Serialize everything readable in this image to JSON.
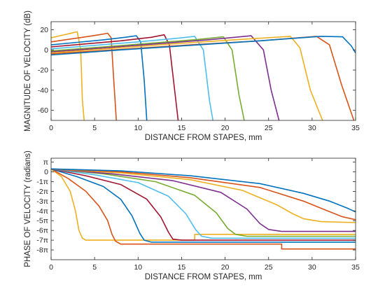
{
  "chart_data": [
    {
      "type": "line",
      "title": "",
      "xlabel": "DISTANCE FROM STAPES, mm",
      "ylabel": "MAGNITUDE OF VELOCITY (dB)",
      "xlim": [
        0,
        35
      ],
      "ylim": [
        -70,
        28
      ],
      "xticks": [
        "0",
        "5",
        "10",
        "15",
        "20",
        "25",
        "30",
        "35"
      ],
      "yticks": [
        {
          "value": 20,
          "label": "20"
        },
        {
          "value": 0,
          "label": "0"
        },
        {
          "value": -20,
          "label": "-20"
        },
        {
          "value": -40,
          "label": "-40"
        },
        {
          "value": -60,
          "label": "-60"
        }
      ],
      "grid": false,
      "series": [
        {
          "color": "#EDB120",
          "x": [
            0,
            1,
            2,
            3.0,
            3.4,
            3.6,
            3.8
          ],
          "y": [
            12,
            14,
            16,
            18,
            0,
            -50,
            -70
          ]
        },
        {
          "color": "#D95319",
          "x": [
            0,
            2,
            4,
            5.5,
            6.5,
            6.9,
            7.2,
            7.5
          ],
          "y": [
            8,
            10.5,
            13,
            15,
            16.5,
            12,
            -30,
            -70
          ]
        },
        {
          "color": "#0072BD",
          "x": [
            0,
            3,
            6,
            8.5,
            9.8,
            10.3,
            10.7,
            11.0
          ],
          "y": [
            5,
            7.5,
            10,
            12.5,
            14,
            8,
            -30,
            -70
          ]
        },
        {
          "color": "#A2142F",
          "x": [
            0,
            4,
            8,
            11.5,
            13.0,
            13.6,
            14.2,
            14.6
          ],
          "y": [
            3,
            6,
            9,
            12.5,
            15,
            5,
            -40,
            -70
          ]
        },
        {
          "color": "#4DBEEE",
          "x": [
            0,
            5,
            10,
            14.5,
            16.5,
            17.5,
            18.2,
            18.6
          ],
          "y": [
            1,
            4.5,
            8,
            11.5,
            13.5,
            0,
            -50,
            -70
          ]
        },
        {
          "color": "#77AC30",
          "x": [
            0,
            6,
            12,
            17,
            19.8,
            20.8,
            21.6,
            22.2
          ],
          "y": [
            -1,
            3,
            7,
            10.5,
            13,
            0,
            -45,
            -70
          ]
        },
        {
          "color": "#7E2F8E",
          "x": [
            0,
            6,
            12,
            18,
            23.0,
            24.4,
            25.3,
            26.2
          ],
          "y": [
            -2,
            2,
            6,
            10,
            14,
            0,
            -40,
            -70
          ]
        },
        {
          "color": "#EDB120",
          "x": [
            0,
            7,
            14,
            21,
            27.5,
            28.6,
            29.8,
            31.2
          ],
          "y": [
            -3,
            1.5,
            6,
            10,
            13.5,
            2,
            -40,
            -70
          ]
        },
        {
          "color": "#D95319",
          "x": [
            0,
            8,
            16,
            24,
            30.5,
            32.0,
            33.4,
            34.8
          ],
          "y": [
            -4,
            0.5,
            5,
            9,
            13.5,
            5,
            -35,
            -70
          ]
        },
        {
          "color": "#0072BD",
          "x": [
            0,
            8,
            16,
            24,
            31,
            33.5,
            34.5,
            35
          ],
          "y": [
            -5,
            0,
            4.5,
            9,
            13.5,
            13,
            4,
            -3
          ]
        }
      ]
    },
    {
      "type": "line",
      "title": "",
      "xlabel": "DISTANCE FROM STAPES, mm",
      "ylabel": "PHASE OF VELOCITY (radians)",
      "xlim": [
        0,
        35
      ],
      "ylim": [
        -9,
        1.4
      ],
      "xticks": [
        "0",
        "5",
        "10",
        "15",
        "20",
        "25",
        "30",
        "35"
      ],
      "yticks": [
        {
          "value": 1,
          "label": "π"
        },
        {
          "value": 0,
          "label": "0"
        },
        {
          "value": -1,
          "label": "-1π"
        },
        {
          "value": -2,
          "label": "-2π"
        },
        {
          "value": -3,
          "label": "-3π"
        },
        {
          "value": -4,
          "label": "-4π"
        },
        {
          "value": -5,
          "label": "-5π"
        },
        {
          "value": -6,
          "label": "-6π"
        },
        {
          "value": -7,
          "label": "-7π"
        },
        {
          "value": -8,
          "label": "-8π"
        }
      ],
      "y_unit": "multiples of π",
      "grid": false,
      "series": [
        {
          "color": "#EDB120",
          "x": [
            0,
            1.2,
            2.2,
            2.8,
            3.2,
            3.6,
            4,
            16.5,
            16.5,
            35
          ],
          "y": [
            0.3,
            -0.5,
            -2,
            -4,
            -6,
            -6.8,
            -7,
            -7,
            -6.4,
            -6.4
          ]
        },
        {
          "color": "#D95319",
          "x": [
            0,
            2,
            4,
            5.5,
            6.5,
            7.0,
            7.4,
            8,
            26.5,
            26.5,
            35
          ],
          "y": [
            0.3,
            -0.7,
            -2,
            -3.5,
            -5,
            -6.4,
            -7.1,
            -7.4,
            -7.4,
            -7.9,
            -7.9
          ]
        },
        {
          "color": "#0072BD",
          "x": [
            0,
            3,
            6,
            8,
            9.3,
            10.2,
            10.7,
            11.5,
            35
          ],
          "y": [
            0.3,
            -0.5,
            -1.5,
            -2.8,
            -4.5,
            -6.3,
            -7.0,
            -7.2,
            -7.2
          ]
        },
        {
          "color": "#A2142F",
          "x": [
            0,
            4,
            8,
            11,
            12.6,
            13.5,
            14.0,
            15,
            35
          ],
          "y": [
            0.3,
            -0.4,
            -1.3,
            -2.8,
            -4.6,
            -6.2,
            -6.9,
            -7.0,
            -7.0
          ]
        },
        {
          "color": "#4DBEEE",
          "x": [
            0,
            5,
            10,
            13.5,
            15.5,
            16.6,
            17.3,
            18.5,
            35
          ],
          "y": [
            0.3,
            -0.3,
            -1.1,
            -2.5,
            -4.3,
            -5.9,
            -6.6,
            -6.8,
            -6.8
          ]
        },
        {
          "color": "#77AC30",
          "x": [
            0,
            6,
            12,
            16.5,
            19.0,
            20.3,
            21.2,
            22.5,
            35
          ],
          "y": [
            0.3,
            -0.2,
            -1.0,
            -2.4,
            -4.2,
            -5.8,
            -6.4,
            -6.6,
            -6.6
          ]
        },
        {
          "color": "#7E2F8E",
          "x": [
            0,
            7,
            14,
            19.5,
            22.5,
            24.0,
            25.0,
            26.5,
            35
          ],
          "y": [
            0.3,
            -0.2,
            -0.9,
            -2.1,
            -3.8,
            -5.3,
            -5.9,
            -6.1,
            -6.1
          ]
        },
        {
          "color": "#EDB120",
          "x": [
            0,
            8,
            16,
            22,
            26,
            27.8,
            29.0,
            31,
            35
          ],
          "y": [
            0.3,
            -0.1,
            -0.8,
            -1.9,
            -3.4,
            -4.3,
            -4.8,
            -5.1,
            -5.2
          ]
        },
        {
          "color": "#D95319",
          "x": [
            0,
            8,
            16,
            24,
            29,
            31.5,
            33.5,
            35
          ],
          "y": [
            0.3,
            0,
            -0.6,
            -1.6,
            -3.0,
            -3.9,
            -4.6,
            -4.9
          ]
        },
        {
          "color": "#0072BD",
          "x": [
            0,
            8,
            16,
            24,
            29,
            32,
            34,
            35
          ],
          "y": [
            0.3,
            0.1,
            -0.4,
            -1.2,
            -2.2,
            -3.0,
            -3.7,
            -4.1
          ]
        }
      ]
    }
  ]
}
